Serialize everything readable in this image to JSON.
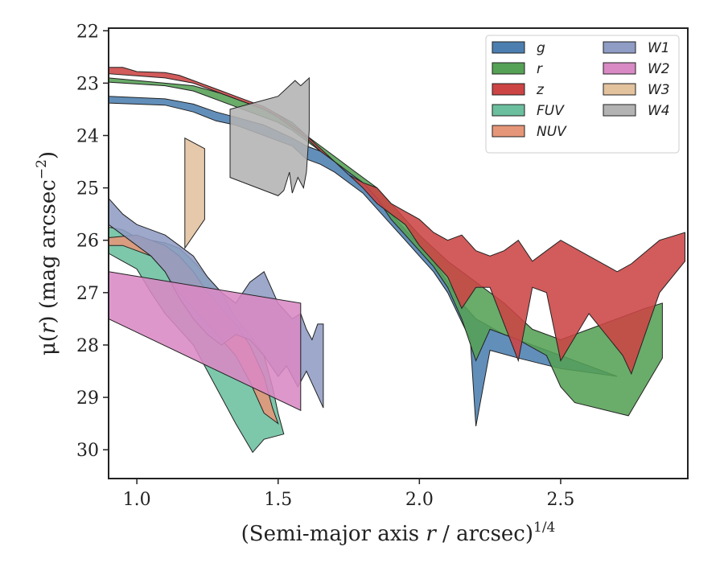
{
  "chart_data": {
    "type": "area",
    "xlabel_parts": [
      "(Semi-major axis ",
      "r",
      " / arcsec)",
      "1/4"
    ],
    "ylabel_parts": [
      "μ(",
      "r",
      ") (mag arcsec",
      "−2",
      ")"
    ],
    "xlim": [
      0.9,
      2.95
    ],
    "ylim": [
      30.55,
      21.95
    ],
    "y_inverted": true,
    "xticks": [
      {
        "value": 1.0,
        "label": "1.0"
      },
      {
        "value": 1.5,
        "label": "1.5"
      },
      {
        "value": 2.0,
        "label": "2.0"
      },
      {
        "value": 2.5,
        "label": "2.5"
      }
    ],
    "yticks": [
      {
        "value": 22,
        "label": "22"
      },
      {
        "value": 23,
        "label": "23"
      },
      {
        "value": 24,
        "label": "24"
      },
      {
        "value": 25,
        "label": "25"
      },
      {
        "value": 26,
        "label": "26"
      },
      {
        "value": 27,
        "label": "27"
      },
      {
        "value": 28,
        "label": "28"
      },
      {
        "value": 29,
        "label": "29"
      },
      {
        "value": 30,
        "label": "30"
      }
    ],
    "grid": false,
    "legend_placement": "top-right",
    "legend_columns": 2,
    "series": [
      {
        "name": "g",
        "color": "#4c7fb0",
        "upper": [
          [
            0.9,
            23.25
          ],
          [
            1.1,
            23.3
          ],
          [
            1.2,
            23.4
          ],
          [
            1.28,
            23.55
          ],
          [
            1.35,
            23.65
          ],
          [
            1.45,
            23.8
          ],
          [
            1.55,
            24.05
          ],
          [
            1.6,
            24.2
          ],
          [
            1.65,
            24.3
          ],
          [
            1.7,
            24.5
          ],
          [
            1.75,
            24.7
          ],
          [
            1.8,
            24.9
          ],
          [
            1.85,
            25.2
          ],
          [
            1.9,
            25.5
          ],
          [
            1.95,
            25.8
          ],
          [
            2.0,
            26.1
          ],
          [
            2.05,
            26.4
          ],
          [
            2.1,
            26.8
          ],
          [
            2.15,
            27.2
          ],
          [
            2.2,
            27.5
          ],
          [
            2.3,
            27.8
          ],
          [
            2.5,
            28.2
          ],
          [
            2.7,
            28.6
          ]
        ],
        "lower": [
          [
            2.7,
            28.6
          ],
          [
            2.5,
            28.45
          ],
          [
            2.35,
            28.25
          ],
          [
            2.25,
            28.1
          ],
          [
            2.2,
            29.55
          ],
          [
            2.18,
            27.9
          ],
          [
            2.1,
            27.0
          ],
          [
            2.05,
            26.6
          ],
          [
            2.0,
            26.3
          ],
          [
            1.95,
            26.0
          ],
          [
            1.9,
            25.7
          ],
          [
            1.85,
            25.4
          ],
          [
            1.8,
            25.1
          ],
          [
            1.75,
            24.9
          ],
          [
            1.7,
            24.7
          ],
          [
            1.65,
            24.55
          ],
          [
            1.6,
            24.45
          ],
          [
            1.55,
            24.2
          ],
          [
            1.45,
            24.0
          ],
          [
            1.35,
            23.8
          ],
          [
            1.28,
            23.72
          ],
          [
            1.2,
            23.55
          ],
          [
            1.1,
            23.42
          ],
          [
            0.9,
            23.38
          ]
        ]
      },
      {
        "name": "r",
        "color": "#55a155",
        "upper": [
          [
            0.9,
            22.9
          ],
          [
            1.1,
            23.0
          ],
          [
            1.2,
            23.05
          ],
          [
            1.3,
            23.2
          ],
          [
            1.4,
            23.4
          ],
          [
            1.5,
            23.6
          ],
          [
            1.55,
            23.75
          ],
          [
            1.6,
            24.0
          ],
          [
            1.65,
            24.2
          ],
          [
            1.7,
            24.4
          ],
          [
            1.75,
            24.6
          ],
          [
            1.8,
            24.8
          ],
          [
            1.85,
            25.0
          ],
          [
            1.9,
            25.3
          ],
          [
            1.95,
            25.6
          ],
          [
            2.0,
            25.9
          ],
          [
            2.1,
            26.4
          ],
          [
            2.2,
            26.8
          ],
          [
            2.3,
            27.2
          ],
          [
            2.4,
            27.7
          ],
          [
            2.5,
            27.9
          ],
          [
            2.6,
            27.7
          ],
          [
            2.7,
            27.5
          ],
          [
            2.8,
            27.3
          ],
          [
            2.86,
            27.2
          ]
        ],
        "lower": [
          [
            2.86,
            28.25
          ],
          [
            2.74,
            29.35
          ],
          [
            2.55,
            29.1
          ],
          [
            2.5,
            28.8
          ],
          [
            2.45,
            28.2
          ],
          [
            2.35,
            27.9
          ],
          [
            2.25,
            27.7
          ],
          [
            2.2,
            28.3
          ],
          [
            2.15,
            27.5
          ],
          [
            2.1,
            26.9
          ],
          [
            2.05,
            26.5
          ],
          [
            2.0,
            26.2
          ],
          [
            1.95,
            25.9
          ],
          [
            1.9,
            25.6
          ],
          [
            1.85,
            25.2
          ],
          [
            1.8,
            24.9
          ],
          [
            1.75,
            24.7
          ],
          [
            1.7,
            24.5
          ],
          [
            1.65,
            24.3
          ],
          [
            1.6,
            24.1
          ],
          [
            1.55,
            23.9
          ],
          [
            1.5,
            23.75
          ],
          [
            1.4,
            23.55
          ],
          [
            1.3,
            23.35
          ],
          [
            1.2,
            23.15
          ],
          [
            1.1,
            23.05
          ],
          [
            0.9,
            22.98
          ]
        ]
      },
      {
        "name": "z",
        "color": "#cc4444",
        "upper": [
          [
            0.9,
            22.7
          ],
          [
            0.95,
            22.7
          ],
          [
            1.0,
            22.78
          ],
          [
            1.1,
            22.8
          ],
          [
            1.15,
            22.85
          ],
          [
            1.2,
            22.95
          ],
          [
            1.25,
            23.05
          ],
          [
            1.3,
            23.15
          ],
          [
            1.35,
            23.25
          ],
          [
            1.4,
            23.35
          ],
          [
            1.45,
            23.45
          ],
          [
            1.5,
            23.6
          ],
          [
            1.55,
            23.8
          ],
          [
            1.6,
            24.0
          ],
          [
            1.65,
            24.25
          ],
          [
            1.7,
            24.5
          ],
          [
            1.75,
            24.75
          ],
          [
            1.8,
            24.9
          ],
          [
            1.85,
            25.0
          ],
          [
            1.9,
            25.3
          ],
          [
            1.95,
            25.45
          ],
          [
            2.0,
            25.6
          ],
          [
            2.05,
            25.85
          ],
          [
            2.1,
            26.0
          ],
          [
            2.15,
            25.9
          ],
          [
            2.2,
            26.2
          ],
          [
            2.25,
            26.3
          ],
          [
            2.3,
            26.2
          ],
          [
            2.35,
            26.0
          ],
          [
            2.4,
            26.4
          ],
          [
            2.45,
            26.2
          ],
          [
            2.5,
            26.0
          ],
          [
            2.6,
            26.3
          ],
          [
            2.7,
            26.6
          ],
          [
            2.75,
            26.45
          ],
          [
            2.85,
            26.0
          ],
          [
            2.94,
            25.85
          ]
        ],
        "lower": [
          [
            2.94,
            26.4
          ],
          [
            2.85,
            27.0
          ],
          [
            2.75,
            28.55
          ],
          [
            2.72,
            28.2
          ],
          [
            2.6,
            27.4
          ],
          [
            2.5,
            28.3
          ],
          [
            2.45,
            27.0
          ],
          [
            2.4,
            26.9
          ],
          [
            2.35,
            28.3
          ],
          [
            2.25,
            26.9
          ],
          [
            2.2,
            26.9
          ],
          [
            2.15,
            27.3
          ],
          [
            2.1,
            26.7
          ],
          [
            2.05,
            26.4
          ],
          [
            2.0,
            26.1
          ],
          [
            1.95,
            25.7
          ],
          [
            1.9,
            25.5
          ],
          [
            1.85,
            25.3
          ],
          [
            1.8,
            25.0
          ],
          [
            1.75,
            24.75
          ],
          [
            1.7,
            24.5
          ],
          [
            1.65,
            24.3
          ],
          [
            1.6,
            24.05
          ],
          [
            1.55,
            23.85
          ],
          [
            1.5,
            23.65
          ],
          [
            1.45,
            23.5
          ],
          [
            1.4,
            23.4
          ],
          [
            1.35,
            23.3
          ],
          [
            1.3,
            23.2
          ],
          [
            1.25,
            23.1
          ],
          [
            1.2,
            23.0
          ],
          [
            1.1,
            22.9
          ],
          [
            0.9,
            22.82
          ]
        ]
      },
      {
        "name": "FUV",
        "color": "#6bbf9f",
        "upper": [
          [
            0.9,
            25.75
          ],
          [
            0.95,
            25.8
          ],
          [
            1.0,
            25.95
          ],
          [
            1.1,
            26.05
          ],
          [
            1.15,
            26.15
          ],
          [
            1.2,
            26.4
          ],
          [
            1.25,
            26.7
          ],
          [
            1.3,
            27.0
          ],
          [
            1.35,
            27.5
          ],
          [
            1.4,
            27.8
          ],
          [
            1.45,
            28.2
          ],
          [
            1.48,
            28.8
          ],
          [
            1.5,
            29.3
          ],
          [
            1.52,
            29.7
          ]
        ],
        "lower": [
          [
            1.52,
            29.7
          ],
          [
            1.45,
            29.8
          ],
          [
            1.41,
            30.05
          ],
          [
            1.35,
            29.5
          ],
          [
            1.3,
            29.0
          ],
          [
            1.25,
            28.5
          ],
          [
            1.2,
            28.0
          ],
          [
            1.15,
            27.7
          ],
          [
            1.1,
            27.4
          ],
          [
            1.05,
            27.0
          ],
          [
            1.0,
            26.55
          ],
          [
            0.95,
            26.4
          ],
          [
            0.9,
            26.25
          ]
        ]
      },
      {
        "name": "NUV",
        "color": "#e69678",
        "upper": [
          [
            0.9,
            25.95
          ],
          [
            1.0,
            25.9
          ],
          [
            1.05,
            26.0
          ],
          [
            1.1,
            26.1
          ],
          [
            1.15,
            26.3
          ],
          [
            1.2,
            26.6
          ],
          [
            1.25,
            27.0
          ],
          [
            1.3,
            27.3
          ],
          [
            1.35,
            27.6
          ],
          [
            1.4,
            28.0
          ],
          [
            1.45,
            28.6
          ],
          [
            1.48,
            29.2
          ],
          [
            1.5,
            29.5
          ]
        ],
        "lower": [
          [
            1.5,
            29.5
          ],
          [
            1.45,
            29.3
          ],
          [
            1.4,
            28.7
          ],
          [
            1.35,
            28.2
          ],
          [
            1.3,
            27.9
          ],
          [
            1.25,
            27.6
          ],
          [
            1.2,
            27.3
          ],
          [
            1.15,
            27.0
          ],
          [
            1.1,
            26.6
          ],
          [
            1.05,
            26.3
          ],
          [
            1.0,
            26.2
          ],
          [
            0.95,
            26.1
          ],
          [
            0.9,
            26.1
          ]
        ]
      },
      {
        "name": "W1",
        "color": "#8f9cc4",
        "upper": [
          [
            0.9,
            25.2
          ],
          [
            0.95,
            25.5
          ],
          [
            1.0,
            25.7
          ],
          [
            1.05,
            25.8
          ],
          [
            1.1,
            25.9
          ],
          [
            1.15,
            26.1
          ],
          [
            1.2,
            26.3
          ],
          [
            1.25,
            26.7
          ],
          [
            1.3,
            27.0
          ],
          [
            1.35,
            27.2
          ],
          [
            1.4,
            26.8
          ],
          [
            1.45,
            26.6
          ],
          [
            1.5,
            27.2
          ],
          [
            1.55,
            27.5
          ],
          [
            1.58,
            27.4
          ],
          [
            1.6,
            27.7
          ],
          [
            1.62,
            27.9
          ],
          [
            1.64,
            27.6
          ],
          [
            1.66,
            27.6
          ]
        ],
        "lower": [
          [
            1.66,
            29.2
          ],
          [
            1.6,
            28.5
          ],
          [
            1.57,
            28.8
          ],
          [
            1.53,
            28.4
          ],
          [
            1.5,
            28.6
          ],
          [
            1.45,
            28.2
          ],
          [
            1.4,
            27.9
          ],
          [
            1.35,
            27.8
          ],
          [
            1.3,
            28.0
          ],
          [
            1.25,
            27.8
          ],
          [
            1.2,
            27.5
          ],
          [
            1.15,
            27.1
          ],
          [
            1.1,
            26.6
          ],
          [
            1.05,
            26.3
          ],
          [
            1.0,
            26.1
          ],
          [
            0.95,
            25.9
          ],
          [
            0.9,
            25.7
          ]
        ]
      },
      {
        "name": "W2",
        "color": "#d989c4",
        "upper": [
          [
            0.9,
            26.6
          ],
          [
            1.58,
            27.2
          ]
        ],
        "lower": [
          [
            1.58,
            29.25
          ],
          [
            0.9,
            27.5
          ]
        ]
      },
      {
        "name": "W3",
        "color": "#e3c29e",
        "upper": [
          [
            1.17,
            24.05
          ],
          [
            1.24,
            24.25
          ],
          [
            1.24,
            25.6
          ],
          [
            1.17,
            26.15
          ]
        ],
        "lower": []
      },
      {
        "name": "W4",
        "color": "#b3b3b3",
        "upper": [
          [
            1.33,
            23.5
          ],
          [
            1.5,
            23.25
          ],
          [
            1.56,
            22.95
          ],
          [
            1.58,
            23.05
          ],
          [
            1.61,
            22.9
          ],
          [
            1.61,
            23.9
          ],
          [
            1.6,
            24.7
          ],
          [
            1.59,
            25.0
          ],
          [
            1.57,
            24.8
          ],
          [
            1.55,
            25.1
          ],
          [
            1.54,
            24.7
          ],
          [
            1.52,
            25.05
          ],
          [
            1.5,
            25.15
          ],
          [
            1.33,
            24.8
          ]
        ],
        "lower": []
      }
    ]
  }
}
